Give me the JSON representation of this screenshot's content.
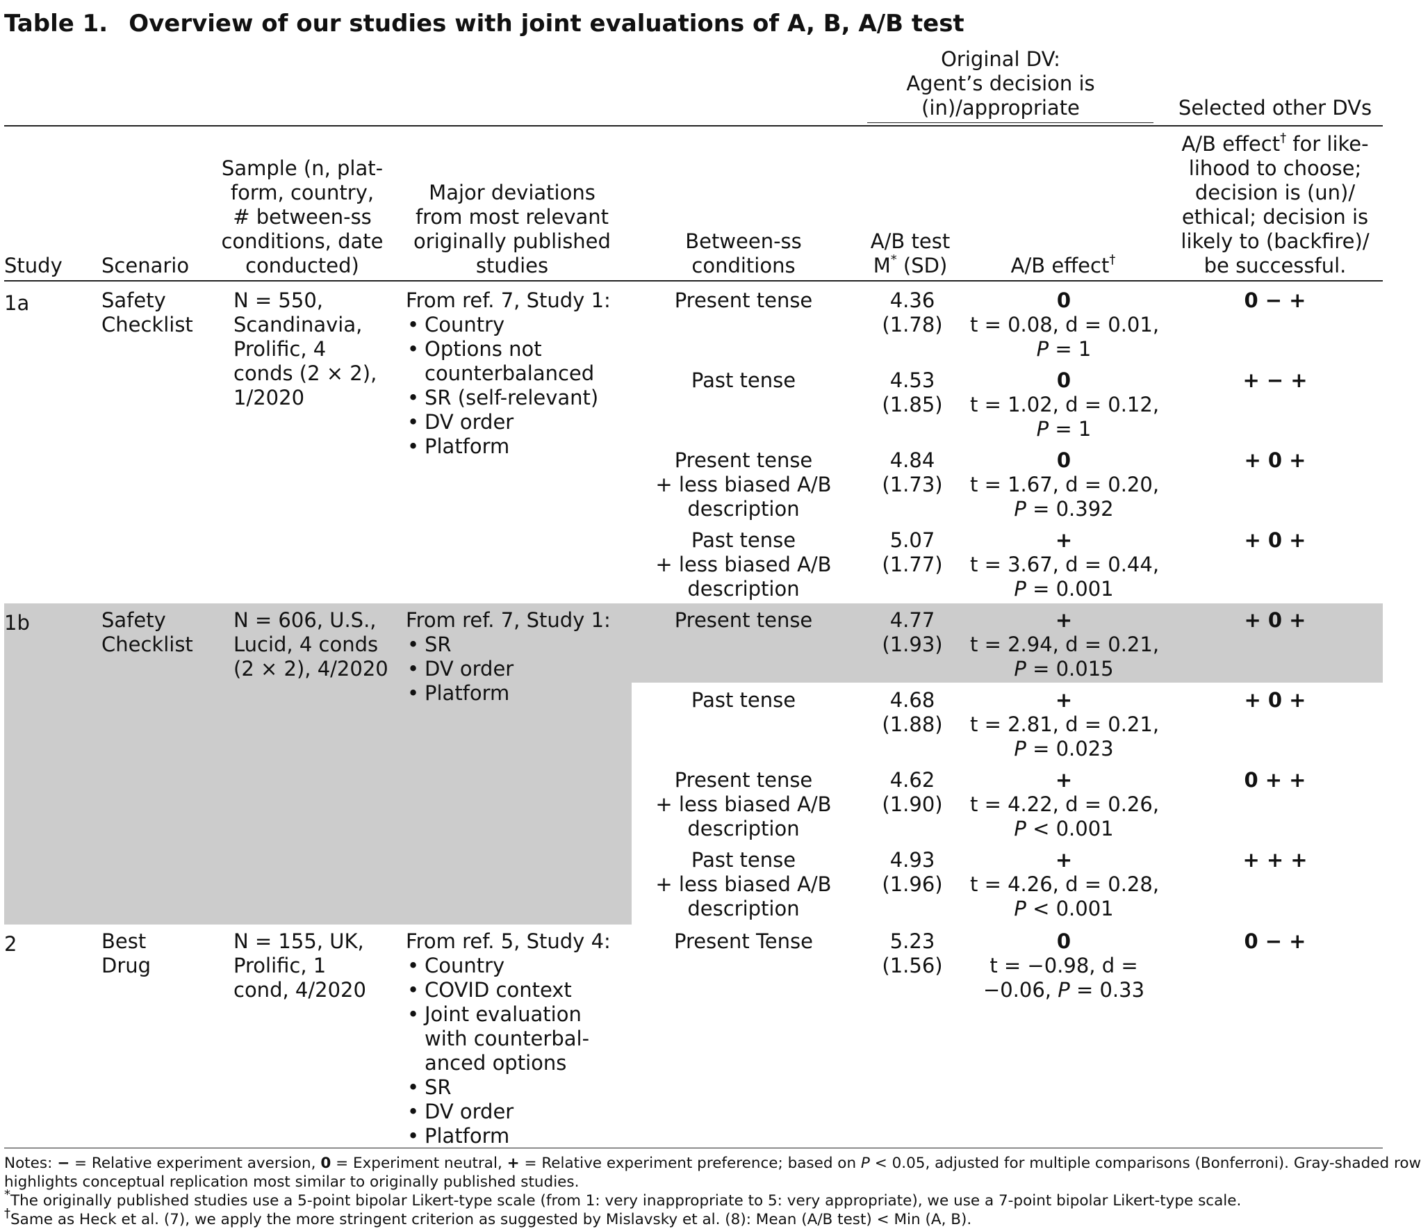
{
  "caption": {
    "label": "Table 1.",
    "title": "Overview of our studies with joint evaluations of A, B, A/B test"
  },
  "group_headers": {
    "original_dv": [
      "Original DV:",
      "Agent’s decision is",
      "(in)/appropriate"
    ],
    "other_dvs": "Selected other DVs"
  },
  "columns": {
    "study": "Study",
    "scenario": "Scenario",
    "sample": [
      "Sample (n, plat-",
      "form, country,",
      "# between-ss",
      "conditions, date",
      "conducted)"
    ],
    "deviations": [
      "Major deviations",
      "from most relevant",
      "originally published",
      "studies"
    ],
    "conditions": [
      "Between-ss",
      "conditions"
    ],
    "ab_test": [
      "A/B test",
      "M",
      "*",
      " (SD)"
    ],
    "ab_effect": [
      "A/B effect",
      "†"
    ],
    "other": [
      "A/B effect",
      "†",
      " for like-",
      "lihood to choose;",
      "decision is (un)/",
      "ethical; decision is",
      "likely to (backfire)/",
      "be successful."
    ]
  },
  "studies": [
    {
      "id": "1a",
      "scenario": [
        "Safety",
        "Checklist"
      ],
      "sample": [
        "N = 550,",
        "Scandinavia,",
        "Prolific, 4",
        "conds (2 × 2),",
        "1/2020"
      ],
      "deviation_intro": "From ref. 7, Study 1:",
      "deviations": [
        [
          "Country"
        ],
        [
          "Options not",
          "counterbalanced"
        ],
        [
          "SR (self-relevant)"
        ],
        [
          "DV order"
        ],
        [
          "Platform"
        ]
      ],
      "rows": [
        {
          "condition": [
            "Present tense"
          ],
          "mean": "4.36",
          "sd": "(1.78)",
          "effect": "0",
          "stat": "t = 0.08, d = 0.01,",
          "p_prefix": "P",
          "p_rest": " = 1",
          "other": "0 − +"
        },
        {
          "condition": [
            "Past tense"
          ],
          "mean": "4.53",
          "sd": "(1.85)",
          "effect": "0",
          "stat": "t = 1.02, d = 0.12,",
          "p_prefix": "P",
          "p_rest": " = 1",
          "other": "+ −  +"
        },
        {
          "condition": [
            "Present tense",
            "+ less biased A/B",
            "description"
          ],
          "mean": "4.84",
          "sd": "(1.73)",
          "effect": "0",
          "stat": "t = 1.67, d = 0.20,",
          "p_prefix": "P",
          "p_rest": " = 0.392",
          "other": "+ 0 +"
        },
        {
          "condition": [
            "Past tense",
            "+ less biased A/B",
            "description"
          ],
          "mean": "5.07",
          "sd": "(1.77)",
          "effect": "+",
          "stat": "t = 3.67, d = 0.44,",
          "p_prefix": "P",
          "p_rest": " = 0.001",
          "other": "+ 0 +"
        }
      ]
    },
    {
      "id": "1b",
      "scenario": [
        "Safety",
        "Checklist"
      ],
      "sample": [
        "N = 606, U.S.,",
        "Lucid, 4 conds",
        "(2 × 2), 4/2020"
      ],
      "deviation_intro": "From ref. 7, Study 1:",
      "deviations": [
        [
          "SR"
        ],
        [
          "DV order"
        ],
        [
          "Platform"
        ]
      ],
      "rows": [
        {
          "condition": [
            "Present tense"
          ],
          "mean": "4.77",
          "sd": "(1.93)",
          "effect": "+",
          "stat": "t = 2.94, d = 0.21,",
          "p_prefix": "P",
          "p_rest": " = 0.015",
          "other": "+ 0 +"
        },
        {
          "condition": [
            "Past tense"
          ],
          "mean": "4.68",
          "sd": "(1.88)",
          "effect": "+",
          "stat": "t = 2.81, d = 0.21,",
          "p_prefix": "P",
          "p_rest": " = 0.023",
          "other": "+ 0 +"
        },
        {
          "condition": [
            "Present tense",
            "+ less biased A/B",
            "description"
          ],
          "mean": "4.62",
          "sd": "(1.90)",
          "effect": "+",
          "stat": "t = 4.22, d = 0.26,",
          "p_prefix": "P",
          "p_rest": " < 0.001",
          "other": "0 + +"
        },
        {
          "condition": [
            "Past tense",
            "+ less biased A/B",
            "description"
          ],
          "mean": "4.93",
          "sd": "(1.96)",
          "effect": "+",
          "stat": "t = 4.26, d = 0.28,",
          "p_prefix": "P",
          "p_rest": " < 0.001",
          "other": "+ + +"
        }
      ]
    },
    {
      "id": "2",
      "scenario": [
        "Best",
        "Drug"
      ],
      "sample": [
        "N = 155, UK,",
        "Prolific, 1",
        "cond, 4/2020"
      ],
      "deviation_intro": "From ref. 5, Study 4:",
      "deviations": [
        [
          "Country"
        ],
        [
          "COVID context"
        ],
        [
          "Joint evaluation",
          "with counterbal-",
          "anced options"
        ],
        [
          "SR"
        ],
        [
          "DV order"
        ],
        [
          "Platform"
        ]
      ],
      "rows": [
        {
          "condition": [
            "Present Tense"
          ],
          "mean": "5.23",
          "sd": "(1.56)",
          "effect": "0",
          "stat": "t = −0.98, d =",
          "stat2": "−0.06, ",
          "p_prefix": "P",
          "p_rest": " = 0.33",
          "other": "0 − +"
        }
      ]
    }
  ],
  "notes": {
    "line1_a": "Notes: ",
    "minus_sym": "−",
    "line1_b": " = Relative experiment aversion, ",
    "zero_sym": "0",
    "line1_c": " = Experiment neutral, ",
    "plus_sym": "+",
    "line1_d": " = Relative experiment preference; based on ",
    "p_sym": "P",
    "line1_e": " < 0.05, adjusted for multiple comparisons (Bonferroni). Gray-shaded row",
    "line2": "highlights conceptual replication most similar to originally published studies.",
    "star": "*",
    "line3": "The originally published studies use a 5-point bipolar Likert-type scale (from 1: very inappropriate to 5: very appropriate), we use a 7-point bipolar Likert-type scale.",
    "dagger": "†",
    "line4": "Same as Heck et al. (7), we apply the more stringent criterion as suggested by Mislavsky et al. (8): Mean (A/B test) < Min (A, B)."
  }
}
